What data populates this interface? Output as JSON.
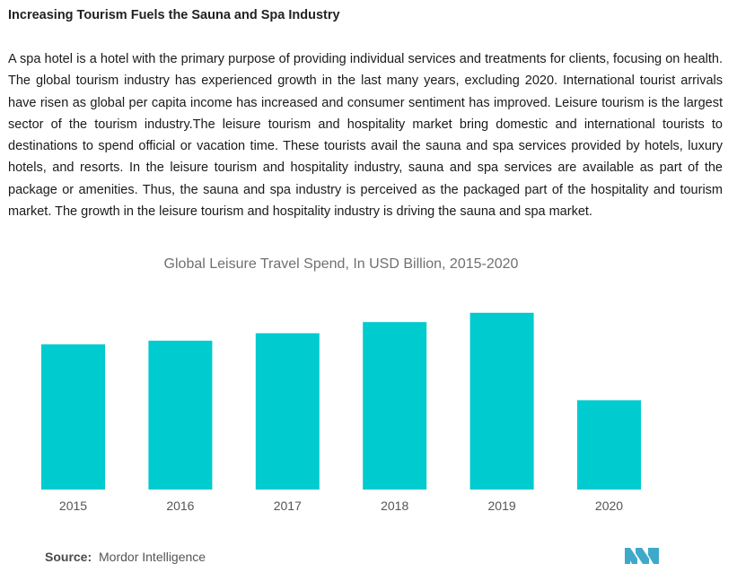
{
  "heading": "Increasing Tourism Fuels the Sauna and Spa Industry",
  "paragraph": "A spa hotel is a hotel with the primary purpose of providing individual services and treatments for clients, focusing on health. The global tourism industry has experienced growth in the last many years, excluding 2020. International tourist arrivals have risen as global per capita income has increased and consumer sentiment has improved. Leisure tourism is the largest sector of the tourism industry.The leisure tourism and hospitality market bring domestic and international tourists to destinations to spend official or vacation time. These tourists avail the sauna and spa services provided by hotels, luxury hotels, and resorts. In the leisure tourism and hospitality industry, sauna and spa services are available as part of the package or amenities. Thus, the sauna and spa industry is perceived as the packaged part of the hospitality and tourism market. The growth in the leisure tourism and hospitality industry is driving the sauna and spa market.",
  "chart_data": {
    "type": "bar",
    "title": "Global Leisure Travel Spend, In USD Billion, 2015-2020",
    "categories": [
      "2015",
      "2016",
      "2017",
      "2018",
      "2019",
      "2020"
    ],
    "values": [
      3.9,
      4.0,
      4.2,
      4.5,
      4.75,
      2.4
    ],
    "ylim": [
      0,
      5.3
    ],
    "grid": false,
    "legend": "none",
    "bar_color": "#00cbcf"
  },
  "source": {
    "label": "Source:",
    "value": "Mordor Intelligence"
  },
  "logo_color": "#3fa9c9"
}
